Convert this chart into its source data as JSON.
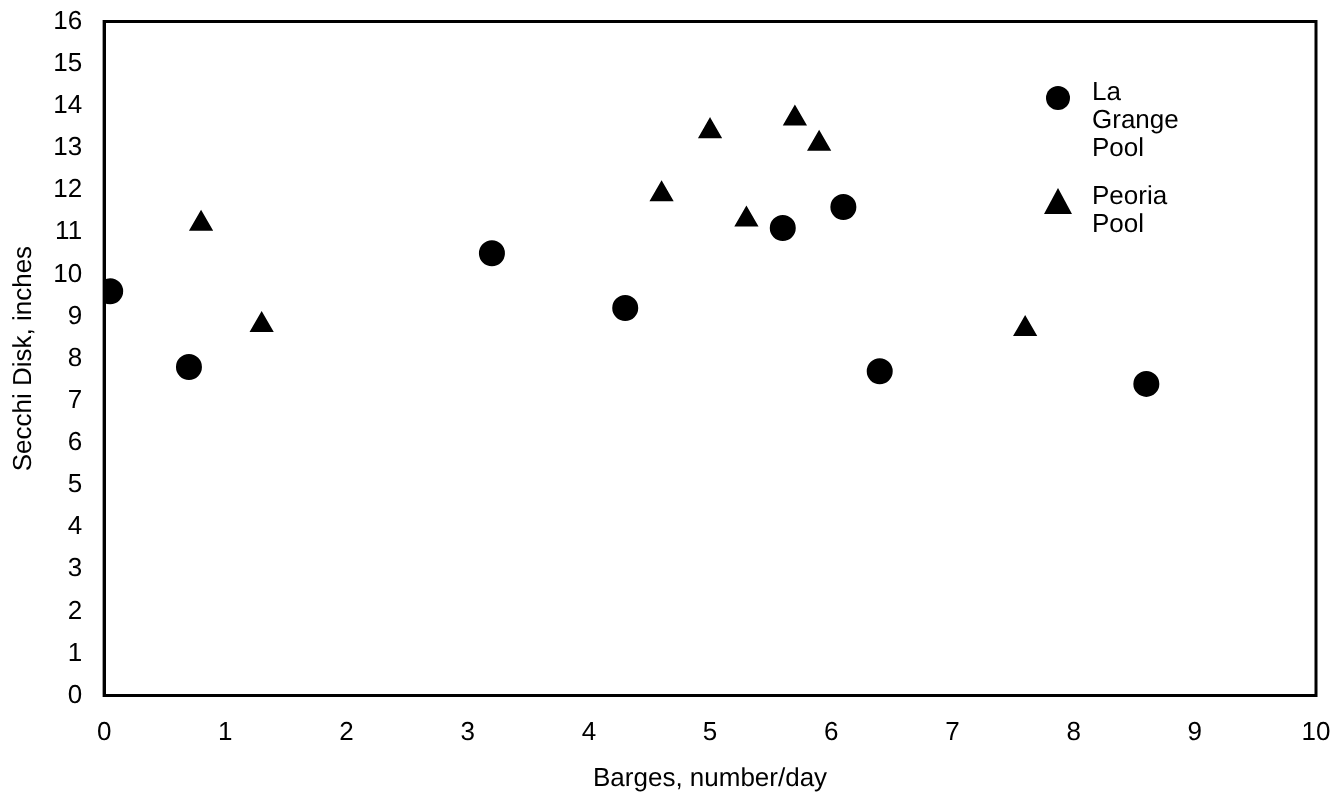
{
  "chart_data": {
    "type": "scatter",
    "xlabel": "Barges, number/day",
    "ylabel": "Secchi Disk, inches",
    "series": [
      {
        "name": "La Grange Pool",
        "color": "#000000",
        "marker": "circle",
        "x": [
          0.05,
          0.7,
          3.2,
          4.3,
          5.6,
          6.1,
          6.4,
          8.6
        ],
        "values": [
          9.6,
          7.8,
          10.5,
          9.2,
          11.1,
          11.6,
          7.7,
          7.4
        ]
      },
      {
        "name": "Peoria Pool",
        "color": "#000000",
        "marker": "triangle",
        "x": [
          0.8,
          1.3,
          4.6,
          5.0,
          5.3,
          5.7,
          5.9,
          7.6
        ],
        "values": [
          11.2,
          8.8,
          11.9,
          13.4,
          11.3,
          13.7,
          13.1,
          8.7
        ]
      }
    ],
    "xlim": [
      0,
      10
    ],
    "xticks": [
      0,
      1,
      2,
      3,
      4,
      5,
      6,
      7,
      8,
      9,
      10
    ],
    "ylim": [
      0,
      16
    ],
    "yticks": [
      0,
      1,
      2,
      3,
      4,
      5,
      6,
      7,
      8,
      9,
      10,
      11,
      12,
      13,
      14,
      15,
      16
    ],
    "grid": false,
    "legend": "top right"
  }
}
